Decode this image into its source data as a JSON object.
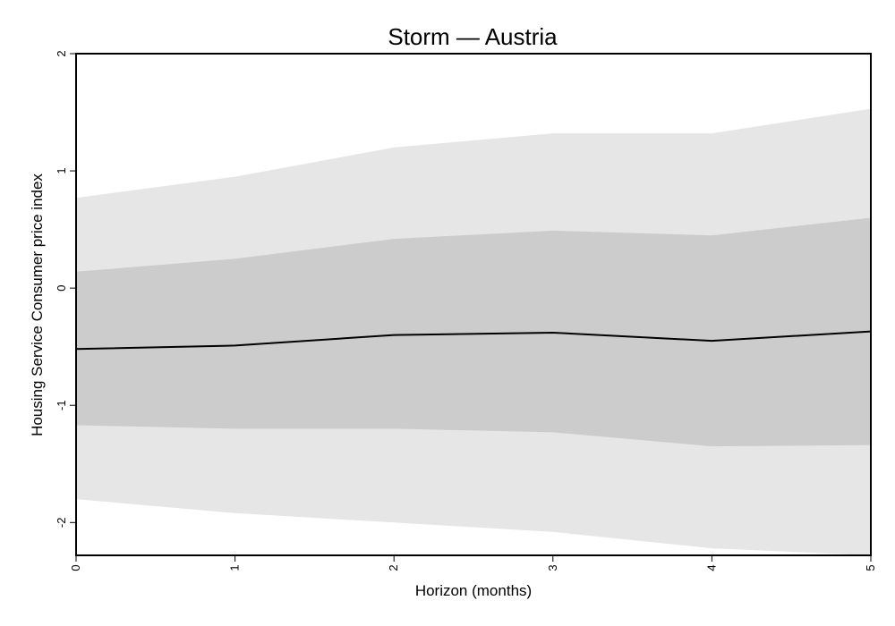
{
  "chart_data": {
    "type": "area",
    "title": "Storm — Austria",
    "xlabel": "Horizon (months)",
    "ylabel": "Housing Service Consumer price index",
    "x": [
      0,
      1,
      2,
      3,
      4,
      5
    ],
    "xlim": [
      0,
      5
    ],
    "ylim": [
      -2.28,
      2
    ],
    "xticks": [
      "0",
      "1",
      "2",
      "3",
      "4",
      "5"
    ],
    "yticks": [
      "-2",
      "-1",
      "0",
      "1",
      "2"
    ],
    "grid": false,
    "series": [
      {
        "role": "outer-band",
        "color": "#e6e6e6",
        "upper": [
          0.77,
          0.95,
          1.2,
          1.32,
          1.32,
          1.53
        ],
        "lower": [
          -1.8,
          -1.92,
          -2.0,
          -2.08,
          -2.22,
          -2.28
        ]
      },
      {
        "role": "inner-band",
        "color": "#cccccc",
        "upper": [
          0.14,
          0.25,
          0.42,
          0.49,
          0.45,
          0.6
        ],
        "lower": [
          -1.17,
          -1.2,
          -1.2,
          -1.23,
          -1.35,
          -1.34
        ]
      },
      {
        "role": "median",
        "color": "#000000",
        "values": [
          -0.52,
          -0.49,
          -0.4,
          -0.38,
          -0.45,
          -0.37
        ]
      }
    ]
  }
}
